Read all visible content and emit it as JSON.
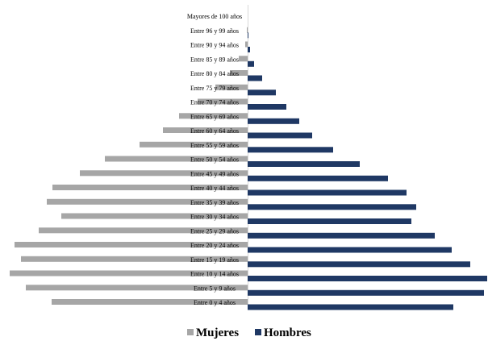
{
  "chart_data": {
    "type": "bar",
    "orientation": "horizontal",
    "layout": "population-pyramid",
    "title": "",
    "xlabel": "",
    "ylabel": "",
    "grid": false,
    "legend_position": "bottom",
    "categories": [
      "Entre 0 y 4 años",
      "Entre 5 y 9 años",
      "Entre 10 y 14 años",
      "Entre 15 y 19 años",
      "Entre 20 y 24 años",
      "Entre 25 y 29 años",
      "Entre 30 y 34 años",
      "Entre 35 y 39 años",
      "Entre 40 y 44 años",
      "Entre 45 y 49 años",
      "Entre 50 y 54 años",
      "Entre 55 y 59 años",
      "Entre 60 y 64 años",
      "Entre 65 y 69 años",
      "Entre 70 y 74 años",
      "Entre 75 y 79 años",
      "Entre 80 y 84 años",
      "Entre 85 y 89 años",
      "Entre 90 y 94 años",
      "Entre 96 y 99 años",
      "Mayores de 100 años"
    ],
    "series": [
      {
        "name": "Mujeres",
        "color": "#a6a6a6",
        "values": [
          243,
          275,
          295,
          281,
          289,
          259,
          231,
          249,
          242,
          208,
          177,
          134,
          105,
          85,
          62,
          40,
          22,
          11,
          3,
          1,
          0
        ]
      },
      {
        "name": "Hombres",
        "color": "#1f3864",
        "values": [
          255,
          293,
          297,
          276,
          253,
          232,
          203,
          209,
          197,
          174,
          139,
          106,
          80,
          64,
          48,
          35,
          18,
          8,
          3,
          1,
          0
        ]
      }
    ]
  },
  "legend": {
    "items": [
      {
        "label": "Mujeres",
        "color": "#a6a6a6"
      },
      {
        "label": "Hombres",
        "color": "#1f3864"
      }
    ]
  }
}
